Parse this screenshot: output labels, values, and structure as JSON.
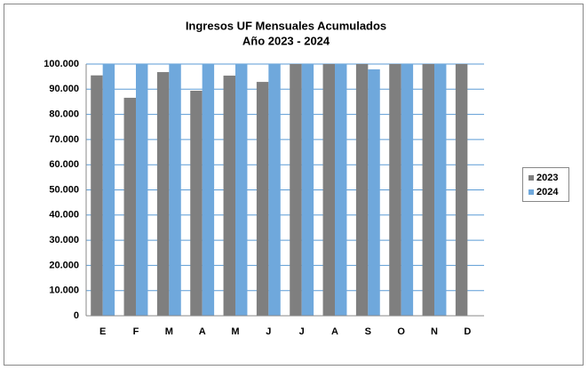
{
  "chart_data": {
    "type": "bar",
    "title": "Ingresos UF Mensuales Acumulados",
    "subtitle": "Año 2023 - 2024",
    "categories": [
      "E",
      "F",
      "M",
      "A",
      "M",
      "J",
      "J",
      "A",
      "S",
      "O",
      "N",
      "D"
    ],
    "series": [
      {
        "name": "2023",
        "color": "#7f7f7f",
        "values": [
          95500,
          86600,
          96800,
          89400,
          95400,
          92900,
          100000,
          100000,
          100000,
          100000,
          100000,
          100000
        ]
      },
      {
        "name": "2024",
        "color": "#6fa8dc",
        "values": [
          100000,
          100000,
          100000,
          100000,
          100000,
          100000,
          100000,
          100000,
          97900,
          100000,
          100000,
          null
        ]
      }
    ],
    "ylim": [
      0,
      100000
    ],
    "yticks": [
      0,
      {
        "value": 10000,
        "label": "10.000"
      },
      {
        "value": 20000,
        "label": "20.000"
      },
      {
        "value": 30000,
        "label": "30.000"
      },
      {
        "value": 40000,
        "label": "40.000"
      },
      {
        "value": 50000,
        "label": "50.000"
      },
      {
        "value": 60000,
        "label": "60.000"
      },
      {
        "value": 70000,
        "label": "70.000"
      },
      {
        "value": 80000,
        "label": "80.000"
      },
      {
        "value": 90000,
        "label": "90.000"
      },
      {
        "value": 100000,
        "label": "100.000"
      }
    ],
    "grid": true,
    "legend": "right"
  }
}
